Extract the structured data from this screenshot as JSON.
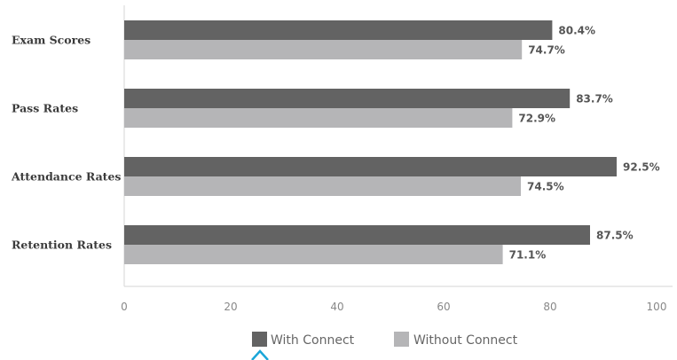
{
  "chart_data": {
    "type": "bar",
    "orientation": "horizontal",
    "categories": [
      "Exam Scores",
      "Pass Rates",
      "Attendance Rates",
      "Retention Rates"
    ],
    "series": [
      {
        "name": "With Connect",
        "values": [
          80.4,
          83.7,
          92.5,
          87.5
        ],
        "color": "#636363"
      },
      {
        "name": "Without Connect",
        "values": [
          74.7,
          72.9,
          74.5,
          71.1
        ],
        "color": "#b5b5b7"
      }
    ],
    "value_labels": {
      "With Connect": [
        "80.4%",
        "83.7%",
        "92.5%",
        "87.5%"
      ],
      "Without Connect": [
        "74.7%",
        "72.9%",
        "74.5%",
        "71.1%"
      ]
    },
    "xlim": [
      0,
      100
    ],
    "xticks": [
      0,
      20,
      40,
      60,
      80,
      100
    ],
    "grid": false,
    "legend_position": "bottom-center",
    "accent_color": "#1aa6d8"
  }
}
